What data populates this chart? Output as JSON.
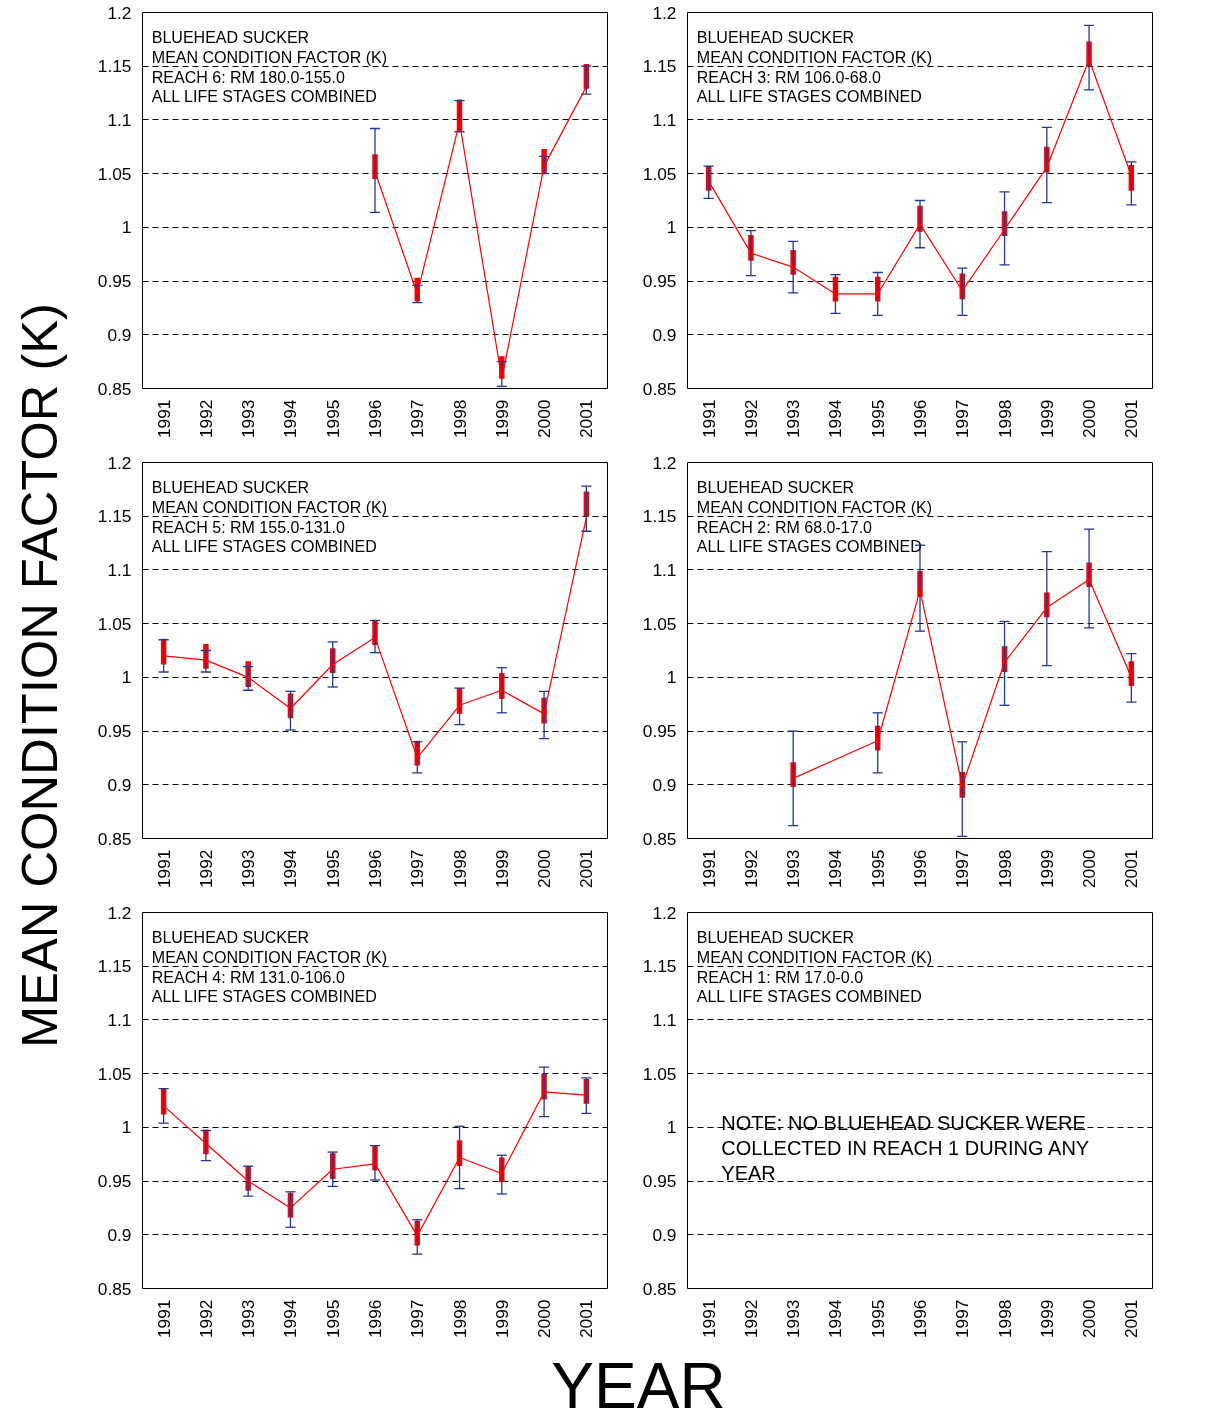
{
  "chart_data": [
    {
      "type": "line",
      "ylabel": "MEAN CONDITION FACTOR (K)",
      "categories": [
        "1991",
        "1992",
        "1993",
        "1994",
        "1995",
        "1996",
        "1997",
        "1998",
        "1999",
        "2000",
        "2001"
      ],
      "ylim": [
        0.85,
        1.2
      ],
      "yticks": [
        0.85,
        0.9,
        0.95,
        1,
        1.05,
        1.1,
        1.15,
        1.2
      ],
      "grid": "y",
      "annotations": [
        "BLUEHEAD SUCKER",
        "MEAN CONDITION FACTOR (K)",
        "REACH 6:  RM 180.0-155.0",
        "ALL LIFE STAGES COMBINED"
      ],
      "series": [
        {
          "type": "bar",
          "color": "#ff0000",
          "base": [
            null,
            null,
            null,
            null,
            null,
            1.045,
            0.931,
            1.089,
            0.859,
            1.05,
            1.129
          ],
          "values": [
            null,
            null,
            null,
            null,
            null,
            0.023,
            0.022,
            0.03,
            0.021,
            0.023,
            0.023
          ]
        },
        {
          "color": "#ff0000",
          "values": [
            null,
            null,
            null,
            null,
            null,
            1.052,
            0.938,
            1.098,
            0.859,
            1.057,
            1.131
          ],
          "errors": [
            null,
            null,
            null,
            null,
            null,
            [
              1.014,
              1.092
            ],
            [
              0.93,
              0.946
            ],
            [
              1.089,
              1.118
            ],
            [
              0.852,
              0.875
            ],
            [
              1.05,
              1.066
            ],
            [
              1.124,
              1.15
            ]
          ]
        }
      ]
    },
    {
      "type": "line",
      "categories": [
        "1991",
        "1992",
        "1993",
        "1994",
        "1995",
        "1996",
        "1997",
        "1998",
        "1999",
        "2000",
        "2001"
      ],
      "ylim": [
        0.85,
        1.2
      ],
      "yticks": [
        0.85,
        0.9,
        0.95,
        1,
        1.05,
        1.1,
        1.15,
        1.2
      ],
      "grid": "y",
      "annotations": [
        "BLUEHEAD SUCKER",
        "MEAN CONDITION FACTOR (K)",
        "REACH 3:  RM 106.0-68.0",
        "ALL LIFE STAGES COMBINED"
      ],
      "series": [
        {
          "type": "bar",
          "color": "#ff0000",
          "base": [
            1.034,
            0.969,
            0.956,
            0.931,
            0.931,
            0.996,
            0.933,
            0.992,
            1.051,
            1.15,
            1.034
          ],
          "values": [
            0.023,
            0.024,
            0.023,
            0.023,
            0.023,
            0.024,
            0.024,
            0.023,
            0.024,
            0.023,
            0.024
          ]
        },
        {
          "color": "#ff0000",
          "values": [
            1.043,
            0.976,
            0.963,
            0.938,
            0.938,
            1.003,
            0.941,
            0.998,
            1.056,
            1.156,
            1.048
          ],
          "errors": [
            [
              1.027,
              1.057
            ],
            [
              0.955,
              0.997
            ],
            [
              0.939,
              0.987
            ],
            [
              0.92,
              0.956
            ],
            [
              0.918,
              0.958
            ],
            [
              0.981,
              1.025
            ],
            [
              0.918,
              0.962
            ],
            [
              0.965,
              1.033
            ],
            [
              1.023,
              1.093
            ],
            [
              1.128,
              1.188
            ],
            [
              1.021,
              1.061
            ]
          ]
        }
      ]
    },
    {
      "type": "line",
      "categories": [
        "1991",
        "1992",
        "1993",
        "1994",
        "1995",
        "1996",
        "1997",
        "1998",
        "1999",
        "2000",
        "2001"
      ],
      "ylim": [
        0.85,
        1.2
      ],
      "yticks": [
        0.85,
        0.9,
        0.95,
        1,
        1.05,
        1.1,
        1.15,
        1.2
      ],
      "grid": "y",
      "annotations": [
        "BLUEHEAD SUCKER",
        "MEAN CONDITION FACTOR (K)",
        "REACH 5:  RM 155.0-131.0",
        "ALL LIFE STAGES COMBINED"
      ],
      "series": [
        {
          "type": "bar",
          "color": "#ff0000",
          "base": [
            1.012,
            1.008,
            0.991,
            0.962,
            1.004,
            1.03,
            0.918,
            0.966,
            0.98,
            0.957,
            1.15
          ],
          "values": [
            0.024,
            0.023,
            0.024,
            0.023,
            0.023,
            0.023,
            0.023,
            0.024,
            0.024,
            0.024,
            0.023
          ]
        },
        {
          "color": "#ff0000",
          "values": [
            1.02,
            1.016,
            1.0,
            0.971,
            1.012,
            1.037,
            0.925,
            0.974,
            0.988,
            0.966,
            1.149
          ],
          "errors": [
            [
              1.005,
              1.035
            ],
            [
              1.005,
              1.025
            ],
            [
              0.988,
              1.01
            ],
            [
              0.951,
              0.987
            ],
            [
              0.991,
              1.033
            ],
            [
              1.023,
              1.053
            ],
            [
              0.911,
              0.94
            ],
            [
              0.956,
              0.99
            ],
            [
              0.967,
              1.009
            ],
            [
              0.943,
              0.987
            ],
            [
              1.136,
              1.178
            ]
          ]
        }
      ]
    },
    {
      "type": "line",
      "categories": [
        "1991",
        "1992",
        "1993",
        "1994",
        "1995",
        "1996",
        "1997",
        "1998",
        "1999",
        "2000",
        "2001"
      ],
      "ylim": [
        0.85,
        1.2
      ],
      "yticks": [
        0.85,
        0.9,
        0.95,
        1,
        1.05,
        1.1,
        1.15,
        1.2
      ],
      "grid": "y",
      "annotations": [
        "BLUEHEAD SUCKER",
        "MEAN CONDITION FACTOR (K)",
        "REACH 2:  RM 68.0-17.0",
        "ALL LIFE STAGES COMBINED"
      ],
      "series": [
        {
          "type": "bar",
          "color": "#ff0000",
          "base": [
            null,
            null,
            0.898,
            null,
            0.932,
            1.075,
            0.888,
            1.005,
            1.056,
            1.084,
            0.992
          ],
          "values": [
            null,
            null,
            0.023,
            null,
            0.023,
            0.024,
            0.024,
            0.024,
            0.023,
            0.023,
            0.023
          ]
        },
        {
          "color": "#ff0000",
          "values": [
            null,
            null,
            0.906,
            null,
            0.941,
            1.081,
            0.899,
            1.014,
            1.065,
            1.091,
            1.0
          ],
          "errors": [
            null,
            null,
            [
              0.862,
              0.95
            ],
            null,
            [
              0.911,
              0.967
            ],
            [
              1.043,
              1.123
            ],
            [
              0.852,
              0.94
            ],
            [
              0.974,
              1.052
            ],
            [
              1.011,
              1.117
            ],
            [
              1.046,
              1.138
            ],
            [
              0.977,
              1.022
            ]
          ]
        }
      ]
    },
    {
      "type": "line",
      "categories": [
        "1991",
        "1992",
        "1993",
        "1994",
        "1995",
        "1996",
        "1997",
        "1998",
        "1999",
        "2000",
        "2001"
      ],
      "ylim": [
        0.85,
        1.2
      ],
      "yticks": [
        0.85,
        0.9,
        0.95,
        1,
        1.05,
        1.1,
        1.15,
        1.2
      ],
      "grid": "y",
      "annotations": [
        "BLUEHEAD SUCKER",
        "MEAN CONDITION FACTOR (K)",
        "REACH 4:  RM 131.0-106.0",
        "ALL LIFE STAGES COMBINED"
      ],
      "series": [
        {
          "type": "bar",
          "color": "#ff0000",
          "base": [
            1.012,
            0.975,
            0.941,
            0.916,
            0.952,
            0.96,
            0.89,
            0.964,
            0.949,
            1.026,
            1.022
          ],
          "values": [
            0.024,
            0.023,
            0.023,
            0.023,
            0.024,
            0.023,
            0.023,
            0.024,
            0.023,
            0.024,
            0.023
          ]
        },
        {
          "color": "#ff0000",
          "values": [
            1.02,
            0.985,
            0.95,
            0.925,
            0.961,
            0.966,
            0.899,
            0.972,
            0.957,
            1.033,
            1.03
          ],
          "errors": [
            [
              1.004,
              1.036
            ],
            [
              0.969,
              0.997
            ],
            [
              0.936,
              0.964
            ],
            [
              0.907,
              0.94
            ],
            [
              0.945,
              0.977
            ],
            [
              0.951,
              0.983
            ],
            [
              0.882,
              0.914
            ],
            [
              0.943,
              1.001
            ],
            [
              0.938,
              0.974
            ],
            [
              1.01,
              1.056
            ],
            [
              1.013,
              1.046
            ]
          ]
        }
      ]
    },
    {
      "type": "line",
      "xlabel": "YEAR",
      "categories": [
        "1991",
        "1992",
        "1993",
        "1994",
        "1995",
        "1996",
        "1997",
        "1998",
        "1999",
        "2000",
        "2001"
      ],
      "ylim": [
        0.85,
        1.2
      ],
      "yticks": [
        0.85,
        0.9,
        0.95,
        1,
        1.05,
        1.1,
        1.15,
        1.2
      ],
      "grid": "y",
      "annotations": [
        "BLUEHEAD SUCKER",
        "MEAN CONDITION FACTOR (K)",
        "REACH 1:  RM 17.0-0.0",
        "ALL LIFE STAGES COMBINED",
        "NOTE:  NO BLUEHEAD SUCKER WERE\nCOLLECTED IN REACH 1 DURING ANY\nYEAR"
      ]
    }
  ]
}
